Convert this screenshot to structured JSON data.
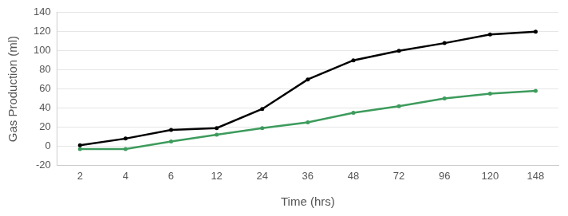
{
  "chart_data": {
    "type": "line",
    "x_label": "Time (hrs)",
    "y_label": "Gas Production (ml)",
    "categories": [
      "2",
      "4",
      "6",
      "12",
      "24",
      "36",
      "48",
      "72",
      "96",
      "120",
      "148"
    ],
    "series": [
      {
        "color": "#000000",
        "marker": "circle",
        "line_style": "solid",
        "values": [
          1,
          8,
          17,
          19,
          39,
          70,
          90,
          100,
          108,
          117,
          120
        ]
      },
      {
        "color": "#3d9b5c",
        "marker": "circle",
        "line_style": "solid",
        "values": [
          -3,
          -3,
          5,
          12,
          19,
          25,
          35,
          42,
          50,
          55,
          58
        ]
      }
    ],
    "ylim": [
      -20,
      140
    ],
    "yticks": [
      -20,
      0,
      20,
      40,
      60,
      80,
      100,
      120,
      140
    ],
    "grid": true
  }
}
